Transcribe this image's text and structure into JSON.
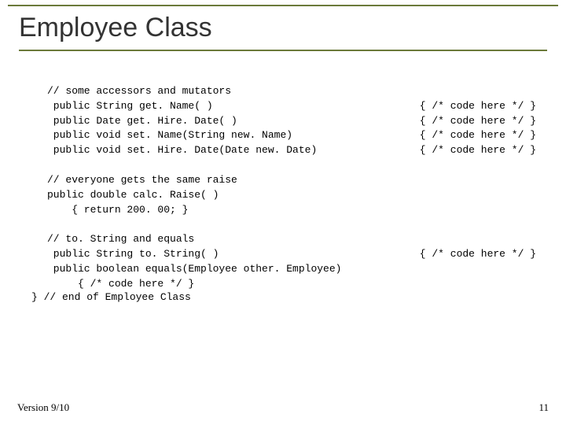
{
  "title": "Employee Class",
  "accent_color": "#6b7a3a",
  "code": {
    "block1_comment": "// some accessors and mutators",
    "lines_paired": [
      {
        "left": " public String get. Name( )",
        "right": "{ /* code here */ }"
      },
      {
        "left": " public Date get. Hire. Date( )",
        "right": "{ /* code here */ }"
      },
      {
        "left": " public void set. Name(String new. Name)",
        "right": "{ /* code here */ }"
      },
      {
        "left": " public void set. Hire. Date(Date new. Date)",
        "right": "{ /* code here */ }"
      }
    ],
    "block2": "// everyone gets the same raise\npublic double calc. Raise( )\n    { return 200. 00; }",
    "block3_comment": "// to. String and equals",
    "block3_line1_left": " public String to. String( )",
    "block3_line1_right": "{ /* code here */ }",
    "block3_rest": " public boolean equals(Employee other. Employee)\n     { /* code here */ }",
    "closing": "}   // end of Employee Class"
  },
  "footer": {
    "version": "Version 9/10",
    "page": "11"
  }
}
